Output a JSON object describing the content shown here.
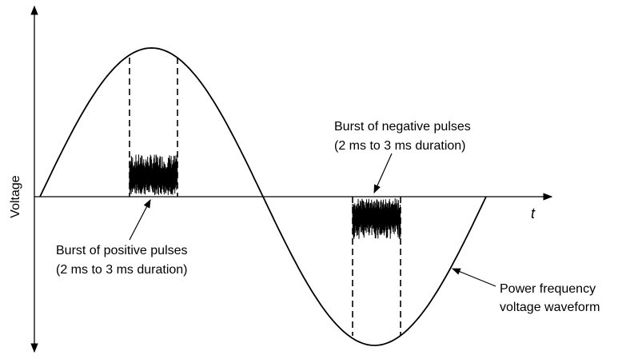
{
  "axes": {
    "y_label": "Voltage",
    "x_label": "t"
  },
  "labels": {
    "positive": [
      "Burst of positive pulses",
      "(2 ms to 3 ms duration)"
    ],
    "negative": [
      "Burst of negative pulses",
      "(2 ms to 3 ms duration)"
    ],
    "waveform": [
      "Power frequency",
      "voltage waveform"
    ]
  }
}
